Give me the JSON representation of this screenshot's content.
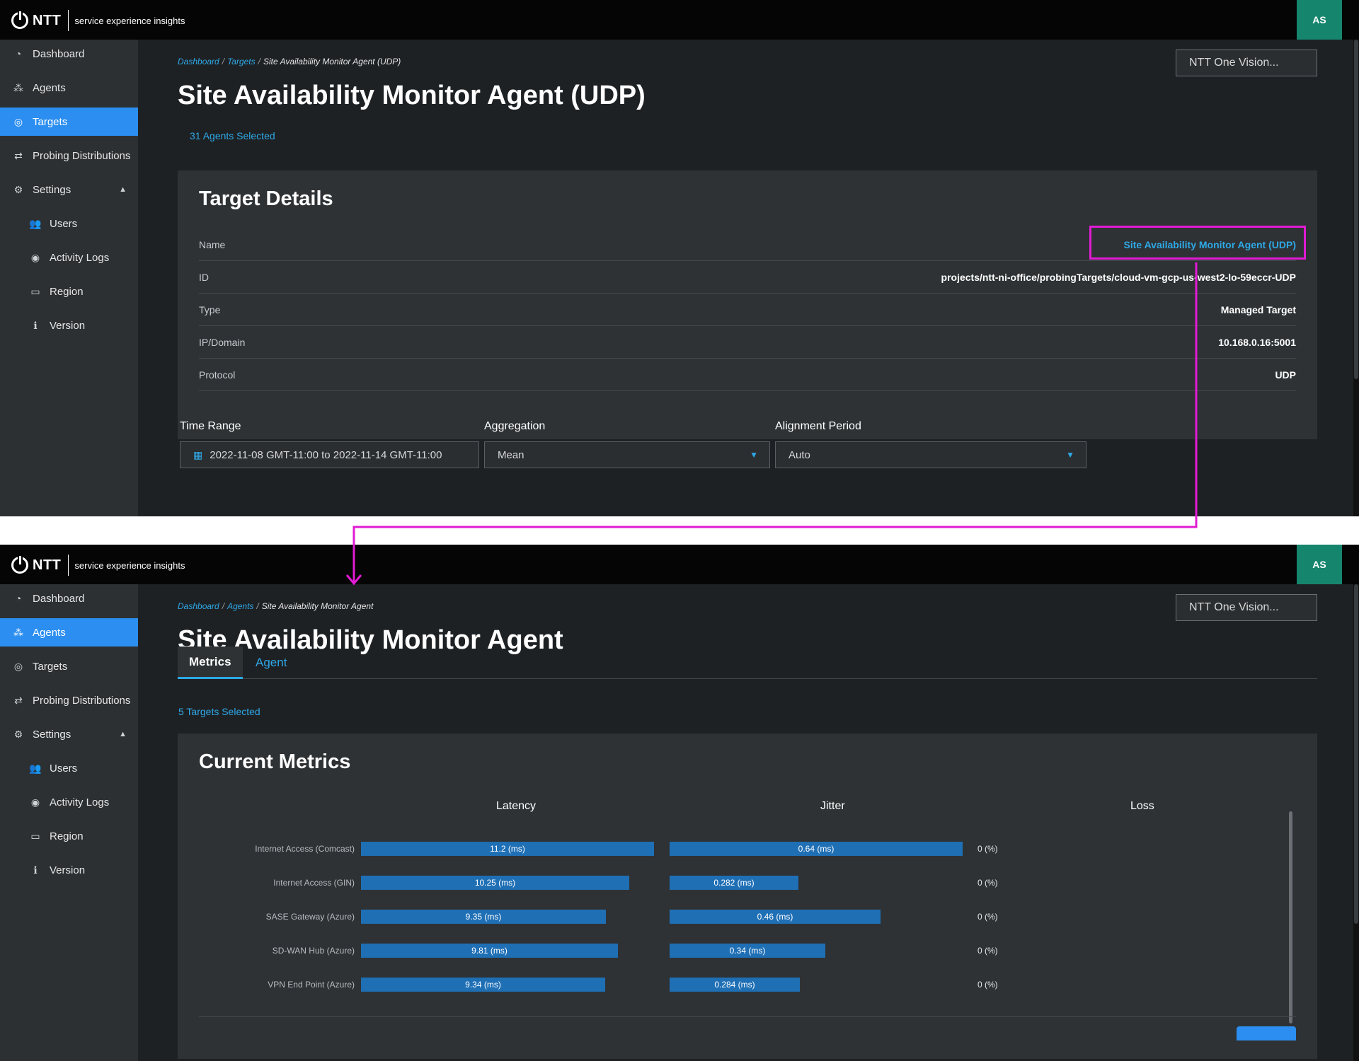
{
  "header": {
    "brand": "NTT",
    "subtitle": "service experience insights",
    "avatar_initials": "AS"
  },
  "search": {
    "placeholder": "NTT One Vision..."
  },
  "colors": {
    "accent": "#2ea8e6",
    "active_nav": "#2b8ef0",
    "avatar": "#16856e",
    "bar": "#1f6fb5",
    "highlight": "#e11bd3"
  },
  "sidebar_top": {
    "items": [
      {
        "label": "Dashboard",
        "icon": "gauge-icon"
      },
      {
        "label": "Agents",
        "icon": "nodes-icon"
      },
      {
        "label": "Targets",
        "icon": "target-icon"
      },
      {
        "label": "Probing Distributions",
        "icon": "arrows-icon"
      },
      {
        "label": "Settings",
        "icon": "gear-icon"
      },
      {
        "label": "Users",
        "icon": "users-icon"
      },
      {
        "label": "Activity Logs",
        "icon": "eye-icon"
      },
      {
        "label": "Region",
        "icon": "id-card-icon"
      },
      {
        "label": "Version",
        "icon": "info-icon"
      }
    ]
  },
  "sidebar_bottom": {
    "items": [
      {
        "label": "Dashboard",
        "icon": "gauge-icon"
      },
      {
        "label": "Agents",
        "icon": "nodes-icon"
      },
      {
        "label": "Targets",
        "icon": "target-icon"
      },
      {
        "label": "Probing Distributions",
        "icon": "arrows-icon"
      },
      {
        "label": "Settings",
        "icon": "gear-icon"
      },
      {
        "label": "Users",
        "icon": "users-icon"
      },
      {
        "label": "Activity Logs",
        "icon": "eye-icon"
      },
      {
        "label": "Region",
        "icon": "id-card-icon"
      },
      {
        "label": "Version",
        "icon": "info-icon"
      }
    ]
  },
  "target_page": {
    "breadcrumb": [
      "Dashboard",
      "Targets",
      "Site Availability Monitor Agent (UDP)"
    ],
    "title": "Site Availability Monitor Agent (UDP)",
    "agents_selected": "31 Agents Selected",
    "details_title": "Target Details",
    "details": [
      {
        "key": "Name",
        "value": "Site Availability Monitor Agent (UDP)"
      },
      {
        "key": "ID",
        "value": "projects/ntt-ni-office/probingTargets/cloud-vm-gcp-us-west2-lo-59eccr-UDP"
      },
      {
        "key": "Type",
        "value": "Managed Target"
      },
      {
        "key": "IP/Domain",
        "value": "10.168.0.16:5001"
      },
      {
        "key": "Protocol",
        "value": "UDP"
      }
    ],
    "time_range_label": "Time Range",
    "time_range_value": "2022-11-08 GMT-11:00 to 2022-11-14 GMT-11:00",
    "aggregation_label": "Aggregation",
    "aggregation_value": "Mean",
    "alignment_label": "Alignment Period",
    "alignment_value": "Auto"
  },
  "agent_page": {
    "breadcrumb": [
      "Dashboard",
      "Agents",
      "Site Availability Monitor Agent"
    ],
    "title": "Site Availability Monitor Agent",
    "tabs": [
      "Metrics",
      "Agent"
    ],
    "targets_selected": "5 Targets Selected",
    "metrics_title": "Current Metrics",
    "columns": [
      "Latency",
      "Jitter",
      "Loss"
    ],
    "rows": [
      {
        "name": "Internet Access (Comcast)",
        "latency": 11.2,
        "latency_label": "11.2 (ms)",
        "jitter": 0.64,
        "jitter_label": "0.64 (ms)",
        "loss_label": "0 (%)"
      },
      {
        "name": "Internet Access (GIN)",
        "latency": 10.25,
        "latency_label": "10.25 (ms)",
        "jitter": 0.282,
        "jitter_label": "0.282 (ms)",
        "loss_label": "0 (%)"
      },
      {
        "name": "SASE Gateway (Azure)",
        "latency": 9.35,
        "latency_label": "9.35 (ms)",
        "jitter": 0.46,
        "jitter_label": "0.46 (ms)",
        "loss_label": "0 (%)"
      },
      {
        "name": "SD-WAN Hub (Azure)",
        "latency": 9.81,
        "latency_label": "9.81 (ms)",
        "jitter": 0.34,
        "jitter_label": "0.34 (ms)",
        "loss_label": "0 (%)"
      },
      {
        "name": "VPN End Point (Azure)",
        "latency": 9.34,
        "latency_label": "9.34 (ms)",
        "jitter": 0.284,
        "jitter_label": "0.284 (ms)",
        "loss_label": "0 (%)"
      }
    ]
  }
}
